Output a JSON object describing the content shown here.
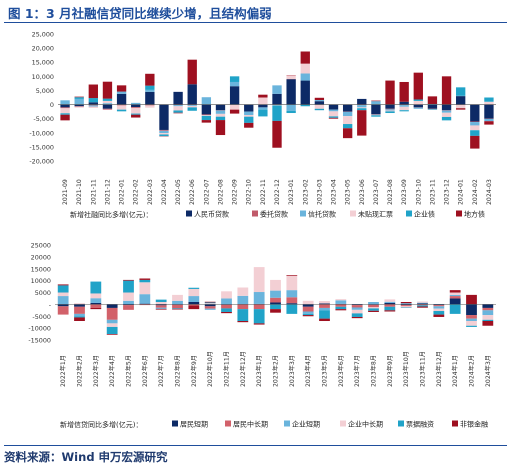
{
  "header": {
    "title": "图 1：3 月社融信贷同比继续少增，且结构偏弱"
  },
  "footer": {
    "source": "资料来源：Wind 申万宏源研究"
  },
  "chart_data": [
    {
      "type": "bar",
      "stacked": true,
      "legend_position": "bottom",
      "grid": false,
      "ylim": [
        -20000,
        25000
      ],
      "yticks": [
        25000,
        20000,
        15000,
        10000,
        5000,
        0,
        -5000,
        -10000,
        -15000,
        -20000
      ],
      "ytick_labels": [
        "25,000",
        "20,000",
        "15,000",
        "10,000",
        "5,000",
        "0",
        "-5,000",
        "-10,000",
        "-15,000",
        "-20,000"
      ],
      "categories": [
        "2021-09",
        "2021-10",
        "2021-11",
        "2021-12",
        "2022-01",
        "2022-02",
        "2022-03",
        "2022-04",
        "2022-05",
        "2022-06",
        "2022-07",
        "2022-08",
        "2022-09",
        "2022-10",
        "2022-11",
        "2022-12",
        "2023-01",
        "2023-02",
        "2023-03",
        "2023-04",
        "2023-05",
        "2023-06",
        "2023-07",
        "2023-08",
        "2023-09",
        "2023-10",
        "2023-11",
        "2023-12",
        "2024-01",
        "2024-02",
        "2024-03"
      ],
      "legend_title": "新增社融同比多增(亿元)：",
      "series": [
        {
          "name": "人民币贷款",
          "color": "#0d2a66",
          "values": [
            -1000,
            -600,
            800,
            -1500,
            3800,
            -900,
            4500,
            -9000,
            4500,
            7200,
            -3500,
            -2000,
            6500,
            -2500,
            -1000,
            3800,
            9000,
            8500,
            1200,
            -1800,
            -2500,
            2000,
            -3500,
            -1500,
            1000,
            -1000,
            -1500,
            -2000,
            3000,
            -6000,
            -5000
          ]
        },
        {
          "name": "委托贷款",
          "color": "#c05a6a",
          "values": [
            -300,
            -200,
            -300,
            -300,
            -300,
            -300,
            -300,
            -300,
            -200,
            -200,
            -200,
            -100,
            0,
            0,
            0,
            0,
            100,
            0,
            0,
            0,
            -100,
            -200,
            0,
            -200,
            -200,
            -100,
            -100,
            -100,
            -100,
            -200,
            -100
          ]
        },
        {
          "name": "信托贷款",
          "color": "#6ab4dc",
          "values": [
            1500,
            2000,
            -400,
            500,
            800,
            600,
            700,
            -800,
            -400,
            -300,
            2600,
            -1200,
            1500,
            -1200,
            -800,
            3000,
            -2200,
            2500,
            400,
            -600,
            -1500,
            -800,
            1200,
            -400,
            -600,
            -400,
            200,
            -800,
            100,
            -1200,
            -800
          ]
        },
        {
          "name": "未贴现汇票",
          "color": "#f3cfd4",
          "values": [
            -1800,
            -300,
            -500,
            800,
            -1500,
            -2000,
            -800,
            -500,
            -1500,
            -500,
            -300,
            -1000,
            -1800,
            -600,
            2500,
            -300,
            1200,
            3500,
            -1500,
            -1800,
            -2800,
            -300,
            -300,
            -300,
            -1200,
            1300,
            -100,
            -1500,
            -1200,
            -1700,
            1000
          ]
        },
        {
          "name": "企业债",
          "color": "#20a3c8",
          "values": [
            -500,
            600,
            1500,
            800,
            -600,
            -400,
            1500,
            -600,
            -800,
            -1200,
            -1500,
            -1200,
            2000,
            -2200,
            -2400,
            -5500,
            -800,
            -600,
            -500,
            -500,
            -1500,
            -700,
            -500,
            -600,
            -400,
            500,
            -200,
            -1200,
            3000,
            -2000,
            1500
          ]
        },
        {
          "name": "地方债",
          "color": "#9e1020",
          "values": [
            -2000,
            200,
            4800,
            6000,
            2200,
            -1000,
            4200,
            -100,
            -200,
            8700,
            -900,
            -5300,
            -1400,
            -1700,
            1000,
            -9500,
            100,
            4300,
            800,
            -300,
            -3500,
            -9000,
            200,
            8500,
            7000,
            9500,
            2700,
            10000,
            -500,
            -4500,
            -1200
          ]
        }
      ]
    },
    {
      "type": "bar",
      "stacked": true,
      "legend_position": "bottom",
      "grid": false,
      "ylim": [
        -15000,
        25000
      ],
      "yticks": [
        25000,
        20000,
        15000,
        10000,
        5000,
        0,
        -5000,
        -10000,
        -15000
      ],
      "ytick_labels": [
        "25000",
        "20000",
        "15000",
        "10000",
        "5000",
        "-",
        "-5000",
        "-10000",
        "-15000"
      ],
      "categories": [
        "2022年1月",
        "2022年2月",
        "2022年3月",
        "2022年4月",
        "2022年5月",
        "2022年6月",
        "2022年7月",
        "2022年8月",
        "2022年9月",
        "2022年10月",
        "2022年11月",
        "2022年12月",
        "2023年1月",
        "2023年2月",
        "2023年3月",
        "2023年4月",
        "2023年5月",
        "2023年6月",
        "2023年7月",
        "2023年8月",
        "2023年9月",
        "2023年10月",
        "2023年11月",
        "2023年12月",
        "2024年1月",
        "2024年2月",
        "2024年3月"
      ],
      "legend_title": "新增信贷同比多增(亿元)：",
      "series": [
        {
          "name": "居民短期",
          "color": "#0d2a66",
          "values": [
            -800,
            -1000,
            600,
            -1500,
            -300,
            300,
            -400,
            -200,
            1000,
            -800,
            -200,
            100,
            200,
            800,
            500,
            -1000,
            400,
            200,
            -300,
            -200,
            600,
            -300,
            400,
            -300,
            2500,
            -4500,
            -1500
          ]
        },
        {
          "name": "居民中长期",
          "color": "#d2616a",
          "values": [
            -3500,
            -3000,
            -1500,
            -5000,
            -2000,
            -300,
            -1000,
            -1500,
            -500,
            -1000,
            -1500,
            -2000,
            -2000,
            2000,
            2500,
            -2000,
            -1500,
            -1000,
            -1000,
            -1000,
            -1000,
            -500,
            -400,
            -500,
            1000,
            -1500,
            -1000
          ]
        },
        {
          "name": "企业短期",
          "color": "#6ab4dc",
          "values": [
            3500,
            -1000,
            2000,
            -1500,
            1500,
            4000,
            -500,
            1500,
            2500,
            -500,
            2500,
            3500,
            5000,
            3000,
            3000,
            -1000,
            -1000,
            1500,
            -1000,
            1000,
            500,
            500,
            300,
            -1000,
            500,
            -1000,
            -2000
          ]
        },
        {
          "name": "企业中长期",
          "color": "#f3cfd4",
          "values": [
            1500,
            500,
            2000,
            -1500,
            3500,
            5000,
            1000,
            2500,
            3000,
            500,
            3000,
            3500,
            10500,
            4500,
            6000,
            1500,
            1000,
            500,
            -1500,
            -500,
            1000,
            -500,
            500,
            -1000,
            1000,
            -2000,
            -2000
          ]
        },
        {
          "name": "票据融资",
          "color": "#20a3c8",
          "values": [
            3000,
            -500,
            5000,
            -3000,
            5000,
            1000,
            1000,
            -300,
            500,
            300,
            -1500,
            -5000,
            -6000,
            -2000,
            -4000,
            -500,
            -3500,
            -1000,
            -1500,
            -1000,
            -1500,
            -200,
            -500,
            -1500,
            -4000,
            -500,
            -500
          ]
        },
        {
          "name": "非银金融",
          "color": "#9e1020",
          "values": [
            400,
            -1500,
            -500,
            -300,
            300,
            600,
            -300,
            -200,
            -1500,
            300,
            -500,
            -500,
            -500,
            -1500,
            300,
            -500,
            -1000,
            -500,
            -500,
            -500,
            -500,
            500,
            -500,
            -1000,
            1000,
            4000,
            -2000
          ]
        }
      ]
    }
  ]
}
